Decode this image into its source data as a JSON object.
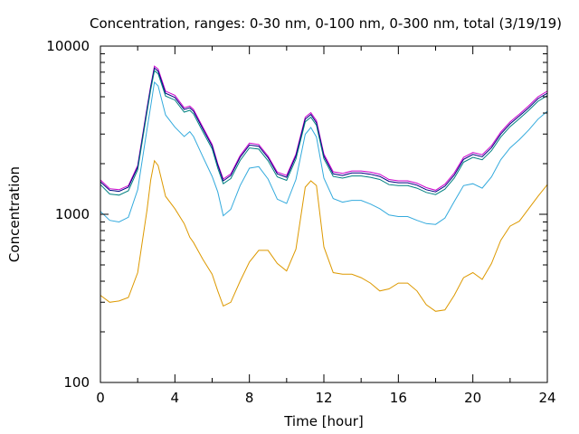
{
  "chart_data": {
    "type": "line",
    "title": "Concentration, ranges: 0-30 nm, 0-100 nm, 0-300 nm, total (3/19/19)",
    "xlabel": "Time [hour]",
    "ylabel": "Concentration",
    "xlim": [
      0,
      24
    ],
    "ylim": [
      100,
      10000
    ],
    "yscale": "log",
    "grid": false,
    "legend": "none",
    "x_ticks": [
      "0",
      "4",
      "8",
      "12",
      "16",
      "20",
      "24"
    ],
    "y_ticks": [
      "100",
      "1000",
      "10000"
    ],
    "x": [
      0,
      0.5,
      1,
      1.5,
      2,
      2.5,
      2.7,
      2.9,
      3.1,
      3.5,
      4,
      4.5,
      4.8,
      5,
      5.5,
      6,
      6.3,
      6.6,
      7,
      7.5,
      8,
      8.5,
      9,
      9.5,
      10,
      10.5,
      11,
      11.3,
      11.6,
      12,
      12.5,
      13,
      13.5,
      14,
      14.5,
      15,
      15.5,
      16,
      16.5,
      17,
      17.5,
      18,
      18.5,
      19,
      19.5,
      20,
      20.5,
      21,
      21.5,
      22,
      22.5,
      23,
      23.5,
      24
    ],
    "series": [
      {
        "color": "#cc00cc",
        "values": [
          1600,
          1420,
          1400,
          1480,
          1950,
          4300,
          5800,
          7600,
          7300,
          5400,
          5100,
          4300,
          4400,
          4200,
          3300,
          2600,
          2000,
          1620,
          1740,
          2230,
          2650,
          2600,
          2220,
          1780,
          1700,
          2280,
          3780,
          4020,
          3600,
          2280,
          1790,
          1750,
          1810,
          1810,
          1780,
          1730,
          1610,
          1580,
          1580,
          1530,
          1440,
          1390,
          1510,
          1760,
          2180,
          2330,
          2260,
          2560,
          3080,
          3540,
          3940,
          4420,
          5000,
          5400
        ]
      },
      {
        "color": "#000080",
        "values": [
          1560,
          1390,
          1370,
          1450,
          1910,
          4200,
          5700,
          7400,
          7100,
          5250,
          4950,
          4200,
          4300,
          4100,
          3220,
          2540,
          1960,
          1580,
          1700,
          2180,
          2580,
          2540,
          2170,
          1740,
          1660,
          2220,
          3680,
          3920,
          3500,
          2220,
          1740,
          1700,
          1760,
          1760,
          1730,
          1680,
          1570,
          1540,
          1540,
          1490,
          1400,
          1360,
          1470,
          1710,
          2120,
          2270,
          2200,
          2490,
          3000,
          3450,
          3840,
          4300,
          4870,
          5250
        ]
      },
      {
        "color": "#008080",
        "values": [
          1500,
          1320,
          1300,
          1380,
          1840,
          4050,
          5500,
          7150,
          6850,
          5050,
          4780,
          4050,
          4150,
          3950,
          3100,
          2450,
          1880,
          1520,
          1630,
          2090,
          2480,
          2440,
          2080,
          1670,
          1590,
          2130,
          3550,
          3780,
          3380,
          2140,
          1680,
          1640,
          1690,
          1690,
          1660,
          1610,
          1500,
          1480,
          1480,
          1430,
          1350,
          1310,
          1410,
          1640,
          2040,
          2180,
          2110,
          2390,
          2880,
          3320,
          3700,
          4150,
          4700,
          5080
        ]
      },
      {
        "color": "#33aadd",
        "values": [
          1040,
          920,
          900,
          960,
          1400,
          3200,
          4400,
          6100,
          5800,
          3900,
          3300,
          2900,
          3100,
          2900,
          2200,
          1680,
          1360,
          980,
          1070,
          1480,
          1880,
          1920,
          1620,
          1230,
          1160,
          1610,
          2990,
          3280,
          2880,
          1640,
          1240,
          1180,
          1210,
          1210,
          1150,
          1080,
          990,
          970,
          970,
          920,
          880,
          870,
          950,
          1190,
          1480,
          1520,
          1430,
          1670,
          2110,
          2480,
          2780,
          3170,
          3680,
          4100
        ]
      },
      {
        "color": "#dd9900",
        "values": [
          330,
          300,
          305,
          320,
          450,
          1060,
          1600,
          2080,
          1950,
          1280,
          1080,
          880,
          730,
          680,
          540,
          440,
          350,
          285,
          300,
          400,
          520,
          610,
          610,
          510,
          460,
          620,
          1450,
          1580,
          1480,
          640,
          450,
          440,
          440,
          420,
          390,
          350,
          360,
          390,
          390,
          350,
          290,
          265,
          270,
          330,
          420,
          450,
          410,
          510,
          700,
          850,
          910,
          1080,
          1280,
          1500
        ]
      }
    ]
  }
}
